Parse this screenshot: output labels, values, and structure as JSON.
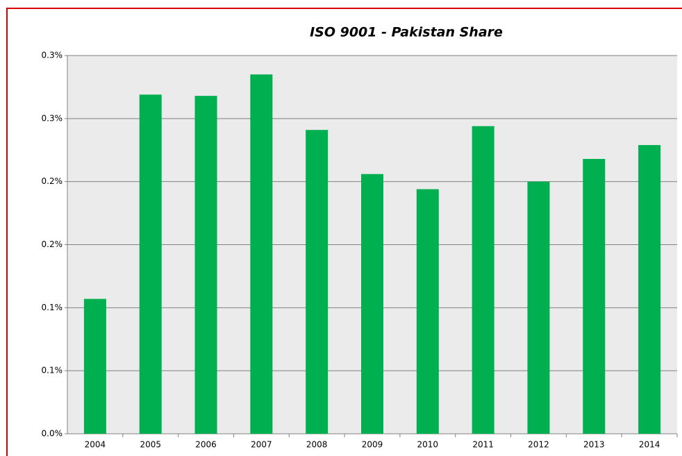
{
  "chart_data": {
    "type": "bar",
    "title": "ISO 9001 - Pakistan Share",
    "categories": [
      "2004",
      "2005",
      "2006",
      "2007",
      "2008",
      "2009",
      "2010",
      "2011",
      "2012",
      "2013",
      "2014"
    ],
    "values": [
      0.107,
      0.269,
      0.268,
      0.285,
      0.241,
      0.206,
      0.194,
      0.244,
      0.2,
      0.218,
      0.229
    ],
    "color": "#00b050",
    "ylim": [
      0,
      0.3
    ],
    "yticks": [
      {
        "value": 0,
        "label": "0.0%"
      },
      {
        "value": 0.05,
        "label": "0.1%"
      },
      {
        "value": 0.1,
        "label": "0.1%"
      },
      {
        "value": 0.15,
        "label": "0.2%"
      },
      {
        "value": 0.2,
        "label": "0.2%"
      },
      {
        "value": 0.25,
        "label": "0.3%"
      },
      {
        "value": 0.3,
        "label": "0.3%"
      }
    ],
    "grid": true
  }
}
